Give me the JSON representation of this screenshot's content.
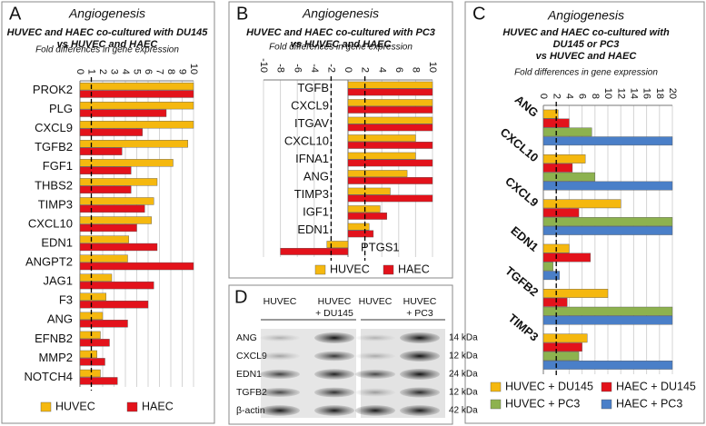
{
  "chart_data": [
    {
      "type": "hbar",
      "panel_label": "A",
      "title": "Angiogenesis",
      "subtitle": [
        "HUVEC and HAEC co-cultured with DU145",
        "vs HUVEC and HAEC"
      ],
      "x_label": "Fold differences in gene expression",
      "categories": [
        "PROK2",
        "PLG",
        "CXCL9",
        "TGFB2",
        "FGF1",
        "THBS2",
        "TIMP3",
        "CXCL10",
        "EDN1",
        "ANGPT2",
        "JAG1",
        "F3",
        "ANG",
        "EFNB2",
        "MMP2",
        "NOTCH4"
      ],
      "series": [
        {
          "name": "HUVEC",
          "color": "#f5b80f",
          "values": [
            10,
            10,
            10,
            9.5,
            8.2,
            6.8,
            6.5,
            6.3,
            4.3,
            4.2,
            2.8,
            2.3,
            2.0,
            1.8,
            1.5,
            1.8
          ]
        },
        {
          "name": "HAEC",
          "color": "#e3121b",
          "values": [
            10,
            7.6,
            5.5,
            3.7,
            4.5,
            4.5,
            5.7,
            5.0,
            6.8,
            10,
            6.5,
            6.0,
            4.2,
            2.6,
            2.2,
            3.3
          ]
        }
      ],
      "xlim": [
        0,
        10
      ],
      "xticks": [
        0,
        1,
        2,
        3,
        4,
        5,
        6,
        7,
        8,
        9,
        10
      ],
      "ref_lines": [
        1
      ],
      "grid": true,
      "legend": "bottom"
    },
    {
      "type": "hbar",
      "panel_label": "B",
      "title": "Angiogenesis",
      "subtitle": [
        "HUVEC and HAEC co-cultured with PC3",
        "vs HUVEC and HAEC"
      ],
      "x_label": "Fold differences in gene expression",
      "categories": [
        "TGFB",
        "CXCL9",
        "ITGAV",
        "CXCL10",
        "IFNA1",
        "ANG",
        "TIMP3",
        "IGF1",
        "EDN1",
        "PTGS1"
      ],
      "series": [
        {
          "name": "HUVEC",
          "color": "#f5b80f",
          "values": [
            10,
            10,
            10,
            8,
            8,
            7,
            5,
            3.8,
            2.5,
            -2.5
          ]
        },
        {
          "name": "HAEC",
          "color": "#e3121b",
          "values": [
            10,
            10,
            10,
            10,
            10,
            10,
            10,
            4.6,
            3,
            -8
          ]
        }
      ],
      "xlim": [
        -10,
        10
      ],
      "xticks": [
        -10,
        -8,
        -6,
        -4,
        -2,
        0,
        2,
        4,
        6,
        8,
        10
      ],
      "ref_lines": [
        -2,
        2
      ],
      "grid": true,
      "legend": "bottom"
    },
    {
      "type": "hbar",
      "panel_label": "C",
      "title": "Angiogenesis",
      "subtitle": [
        "HUVEC and HAEC co-cultured with",
        "DU145 or PC3",
        "vs HUVEC and HAEC"
      ],
      "x_label": "Fold differences in gene expression",
      "categories": [
        "ANG",
        "CXCL10",
        "CXCL9",
        "EDN1",
        "TGFB2",
        "TIMP3"
      ],
      "series": [
        {
          "name": "HUVEC + DU145",
          "color": "#f5b80f",
          "values": [
            2.3,
            6.5,
            12,
            4,
            10,
            6.8
          ]
        },
        {
          "name": "HAEC + DU145",
          "color": "#e3121b",
          "values": [
            4,
            4.5,
            5.5,
            7.3,
            3.7,
            6
          ]
        },
        {
          "name": "HUVEC + PC3",
          "color": "#8db24f",
          "values": [
            7.5,
            8,
            20,
            1.5,
            20,
            5.5
          ]
        },
        {
          "name": "HAEC + PC3",
          "color": "#4a7fc8",
          "values": [
            20,
            20,
            20,
            2.5,
            20,
            20
          ]
        }
      ],
      "xlim": [
        0,
        20
      ],
      "xticks": [
        0,
        2,
        4,
        6,
        8,
        10,
        12,
        14,
        16,
        18,
        20
      ],
      "ref_lines": [
        2
      ],
      "grid": true,
      "legend": "bottom"
    }
  ],
  "blot": {
    "panel_label": "D",
    "columns": [
      "HUVEC",
      "HUVEC\n+ DU145",
      "HUVEC",
      "HUVEC\n+ PC3"
    ],
    "rows": [
      "ANG",
      "CXCL9",
      "EDN1",
      "TGFB2",
      "β-actin"
    ],
    "sizes": [
      "14 kDa",
      "12 kDa",
      "24 kDa",
      "12 kDa",
      "42 kDa"
    ]
  }
}
